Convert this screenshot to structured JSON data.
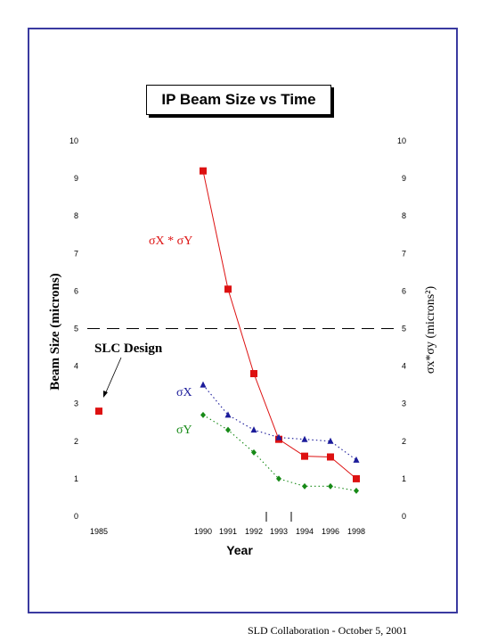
{
  "footer": "SLD Collaboration - October 5, 2001",
  "chart_data": {
    "type": "scatter",
    "title": "IP Beam Size vs Time",
    "xlabel": "Year",
    "ylabel_left": "Beam Size (microns)",
    "ylabel_right": "σx*σy (microns²)",
    "ylim": [
      0,
      10
    ],
    "yticks": [
      0,
      1,
      2,
      3,
      4,
      5,
      6,
      7,
      8,
      9,
      10
    ],
    "categories": [
      "1985",
      "1990",
      "1991",
      "1992",
      "1993",
      "1994",
      "1996",
      "1998"
    ],
    "reference_line": {
      "y": 5,
      "label": "SLC Design"
    },
    "series": [
      {
        "key": "sxsy",
        "name": "σX * σY",
        "color": "#dd1111",
        "marker": "square",
        "line": "solid",
        "values": [
          2.8,
          9.2,
          6.05,
          3.8,
          2.05,
          1.6,
          1.58,
          1.0
        ]
      },
      {
        "key": "sx",
        "name": "σX",
        "color": "#1b1b9a",
        "marker": "triangle",
        "line": "dotted",
        "values": [
          null,
          3.5,
          2.7,
          2.3,
          2.1,
          2.05,
          2.0,
          1.5
        ]
      },
      {
        "key": "sy",
        "name": "σY",
        "color": "#178a17",
        "marker": "diamond",
        "line": "dotted",
        "values": [
          null,
          2.7,
          2.3,
          1.7,
          1.0,
          0.8,
          0.8,
          0.68
        ]
      }
    ]
  }
}
